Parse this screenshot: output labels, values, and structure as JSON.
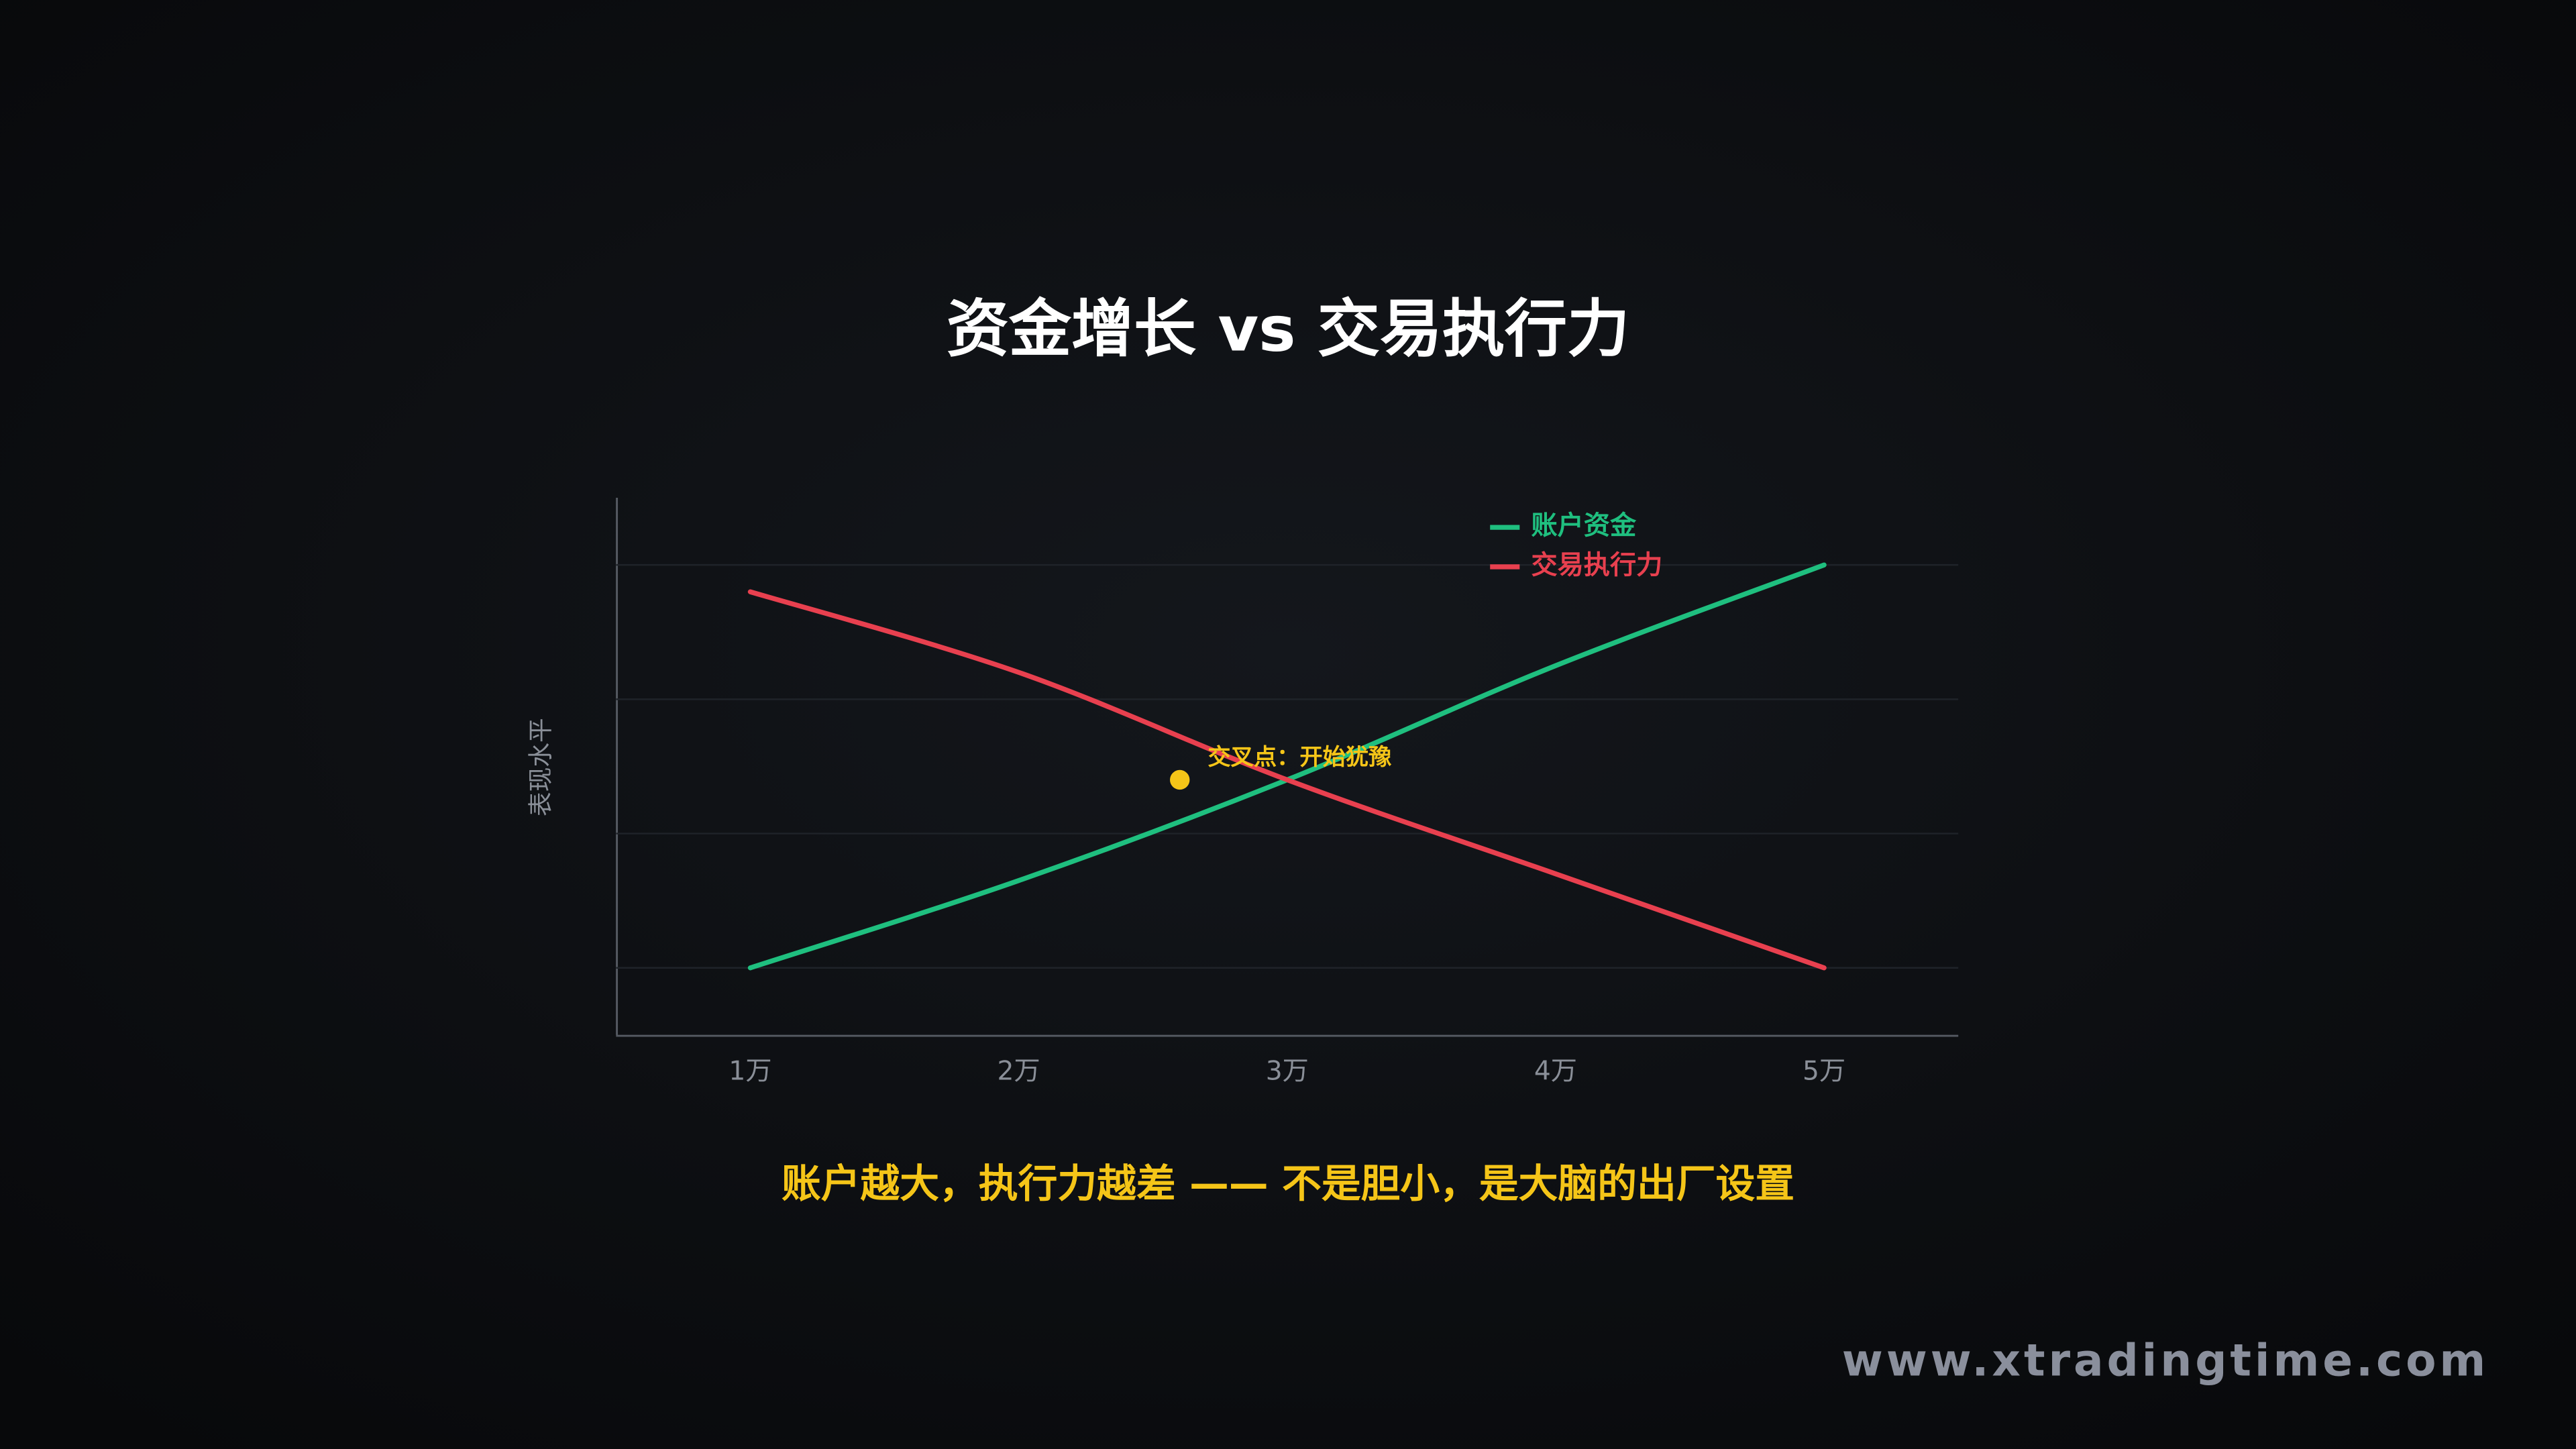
{
  "chart_data": {
    "type": "line",
    "title": "资金增长 vs 交易执行力",
    "y_label": "表现水平",
    "x": [
      1,
      2,
      3,
      4,
      5
    ],
    "xlim": [
      0.5,
      5.5
    ],
    "xticks": [
      {
        "value": 1,
        "label": "1万"
      },
      {
        "value": 2,
        "label": "2万"
      },
      {
        "value": 3,
        "label": "3万"
      },
      {
        "value": 4,
        "label": "4万"
      },
      {
        "value": 5,
        "label": "5万"
      }
    ],
    "ylim": [
      0.5,
      4.5
    ],
    "grid_lines": [
      1,
      2,
      3,
      4
    ],
    "legend": "top-right",
    "series": [
      {
        "name": "账户资金",
        "color": "#1fbf7f",
        "values": [
          1.0,
          1.65,
          2.4,
          3.25,
          4.0
        ]
      },
      {
        "name": "交易执行力",
        "color": "#e8404f",
        "values": [
          3.8,
          3.2,
          2.4,
          1.7,
          1.0
        ]
      }
    ],
    "annotation": {
      "text": "交叉点：开始犹豫",
      "x": 2.6,
      "y": 2.4,
      "color": "#f5c518"
    },
    "caption": "账户越大，执行力越差 —— 不是胆小，是大脑的出厂设置",
    "watermark": "www.xtradingtime.com"
  }
}
